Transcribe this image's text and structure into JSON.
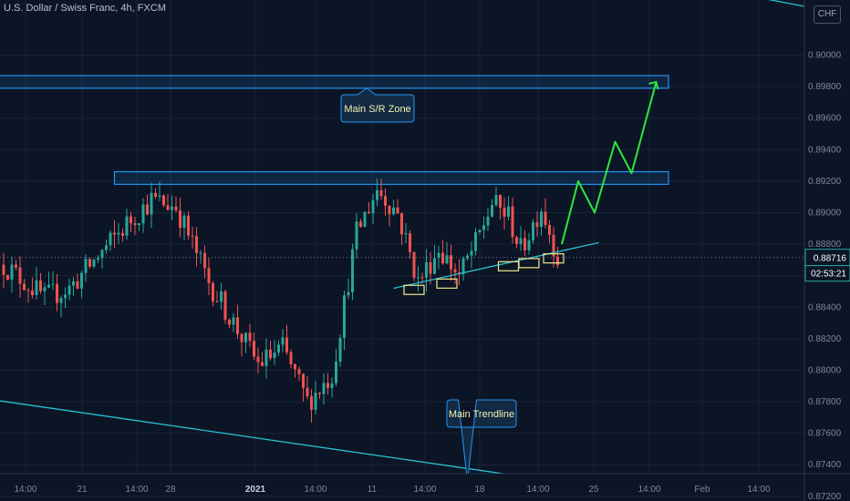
{
  "header": {
    "symbol_title": "U.S. Dollar / Swiss Franc, 4h, FXCM",
    "currency_button": "CHF"
  },
  "price_scale": {
    "current_price_label": "0.88716",
    "countdown_label": "02:53:21"
  },
  "annotations": {
    "zone_label": "Main S/R Zone",
    "trendline_label": "Main Trendline"
  },
  "colors": {
    "background": "#0c1526",
    "up_candle": "#26a69a",
    "down_candle": "#ef5350",
    "zone": "#2196f3",
    "trendline": "#27c2d3",
    "projection": "#2ee63c",
    "touch_box": "#f0e68c",
    "price_tag": "#26a69a"
  },
  "chart_data": {
    "type": "candlestick",
    "title": "U.S. Dollar / Swiss Franc, 4h, FXCM",
    "ylim": [
      0.8717,
      0.9035
    ],
    "y_ticks": [
      "0.87200",
      "0.87400",
      "0.87600",
      "0.87800",
      "0.88000",
      "0.88200",
      "0.88400",
      "0.88600",
      "0.88800",
      "0.89000",
      "0.89200",
      "0.89400",
      "0.89600",
      "0.89800",
      "0.90000"
    ],
    "x_ticks": [
      "14:00",
      "21",
      "14:00",
      "28",
      "2021",
      "14:00",
      "11",
      "14:00",
      "18",
      "14:00",
      "25",
      "14:00",
      "Feb",
      "14:00"
    ],
    "current_price": 0.88716,
    "anchors": [
      {
        "bar": 0,
        "price": 0.8867
      },
      {
        "bar": 10,
        "price": 0.8846
      },
      {
        "bar": 16,
        "price": 0.8852
      },
      {
        "bar": 25,
        "price": 0.8878
      },
      {
        "bar": 30,
        "price": 0.8893
      },
      {
        "bar": 36,
        "price": 0.8908
      },
      {
        "bar": 42,
        "price": 0.8904
      },
      {
        "bar": 50,
        "price": 0.8856
      },
      {
        "bar": 56,
        "price": 0.883
      },
      {
        "bar": 62,
        "price": 0.8804
      },
      {
        "bar": 68,
        "price": 0.8814
      },
      {
        "bar": 74,
        "price": 0.878
      },
      {
        "bar": 80,
        "price": 0.8797
      },
      {
        "bar": 86,
        "price": 0.8887
      },
      {
        "bar": 91,
        "price": 0.8915
      },
      {
        "bar": 96,
        "price": 0.89
      },
      {
        "bar": 101,
        "price": 0.8856
      },
      {
        "bar": 106,
        "price": 0.8877
      },
      {
        "bar": 111,
        "price": 0.886
      },
      {
        "bar": 115,
        "price": 0.888
      },
      {
        "bar": 119,
        "price": 0.8906
      },
      {
        "bar": 123,
        "price": 0.8898
      },
      {
        "bar": 126,
        "price": 0.8876
      },
      {
        "bar": 131,
        "price": 0.8904
      },
      {
        "bar": 135,
        "price": 0.8872
      }
    ],
    "zones": [
      {
        "name": "Main S/R Zone",
        "from": 0.8979,
        "to": 0.8987,
        "start_bar": -2,
        "end_bar": 162
      },
      {
        "name": "",
        "from": 0.8918,
        "to": 0.8926,
        "start_bar": 27,
        "end_bar": 162
      }
    ],
    "trendlines": [
      {
        "name": "Main Trendline",
        "points": [
          [
            -2,
            0.8781
          ],
          [
            165,
            0.8718
          ]
        ]
      },
      {
        "name": "",
        "points": [
          [
            95,
            0.8852
          ],
          [
            145,
            0.8881
          ]
        ]
      },
      {
        "name": "",
        "points": [
          [
            177,
            0.904
          ],
          [
            195,
            0.9031
          ]
        ]
      }
    ],
    "projection": [
      [
        136,
        0.888
      ],
      [
        140,
        0.892
      ],
      [
        144,
        0.89
      ],
      [
        149,
        0.8945
      ],
      [
        153,
        0.8925
      ],
      [
        159,
        0.8983
      ]
    ],
    "touch_points": [
      [
        100,
        0.8851
      ],
      [
        108,
        0.8855
      ],
      [
        123,
        0.8866
      ],
      [
        128,
        0.8868
      ],
      [
        134,
        0.8871
      ]
    ]
  }
}
